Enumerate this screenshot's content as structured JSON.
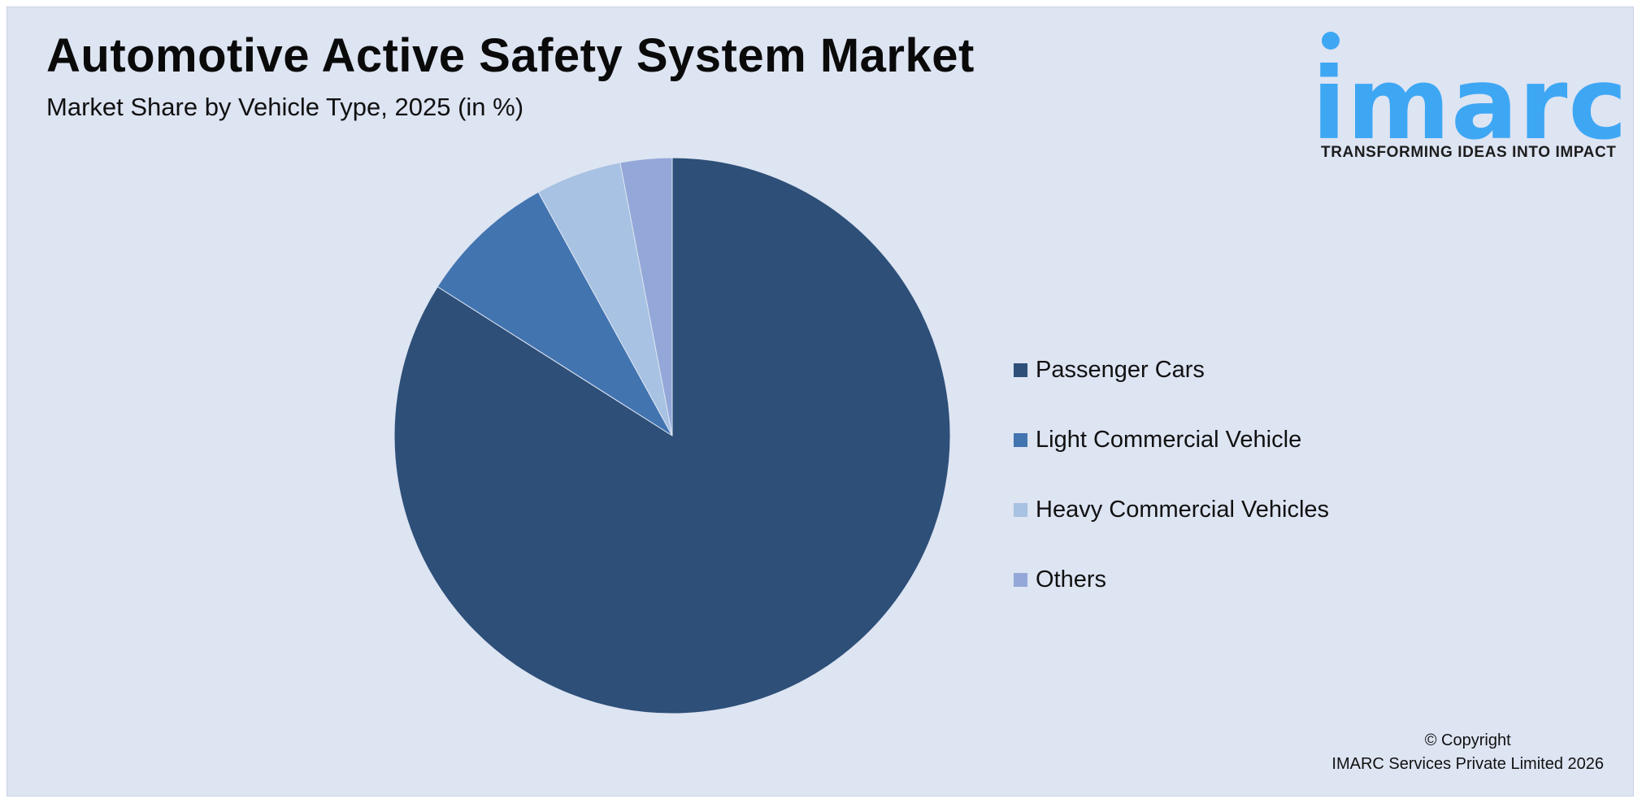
{
  "title": "Automotive Active Safety System Market",
  "subtitle": "Market Share by Vehicle Type, 2025 (in %)",
  "logo": {
    "wordmark": "imarc",
    "tagline": "TRANSFORMING IDEAS INTO IMPACT",
    "color": "#3ea7f4"
  },
  "copyright": {
    "line1": "© Copyright",
    "line2": "IMARC Services Private Limited 2026"
  },
  "chart_data": {
    "type": "pie",
    "title": "Market Share by Vehicle Type, 2025 (in %)",
    "categories": [
      "Passenger Cars",
      "Light Commercial Vehicle",
      "Heavy Commercial Vehicles",
      "Others"
    ],
    "values": [
      84.0,
      8.0,
      5.0,
      3.0
    ],
    "colors": [
      "#2d4f78",
      "#4274b0",
      "#a7c2e2",
      "#93a8d8"
    ],
    "legend_position": "right",
    "start_angle": "12 o'clock",
    "direction": "clockwise"
  }
}
